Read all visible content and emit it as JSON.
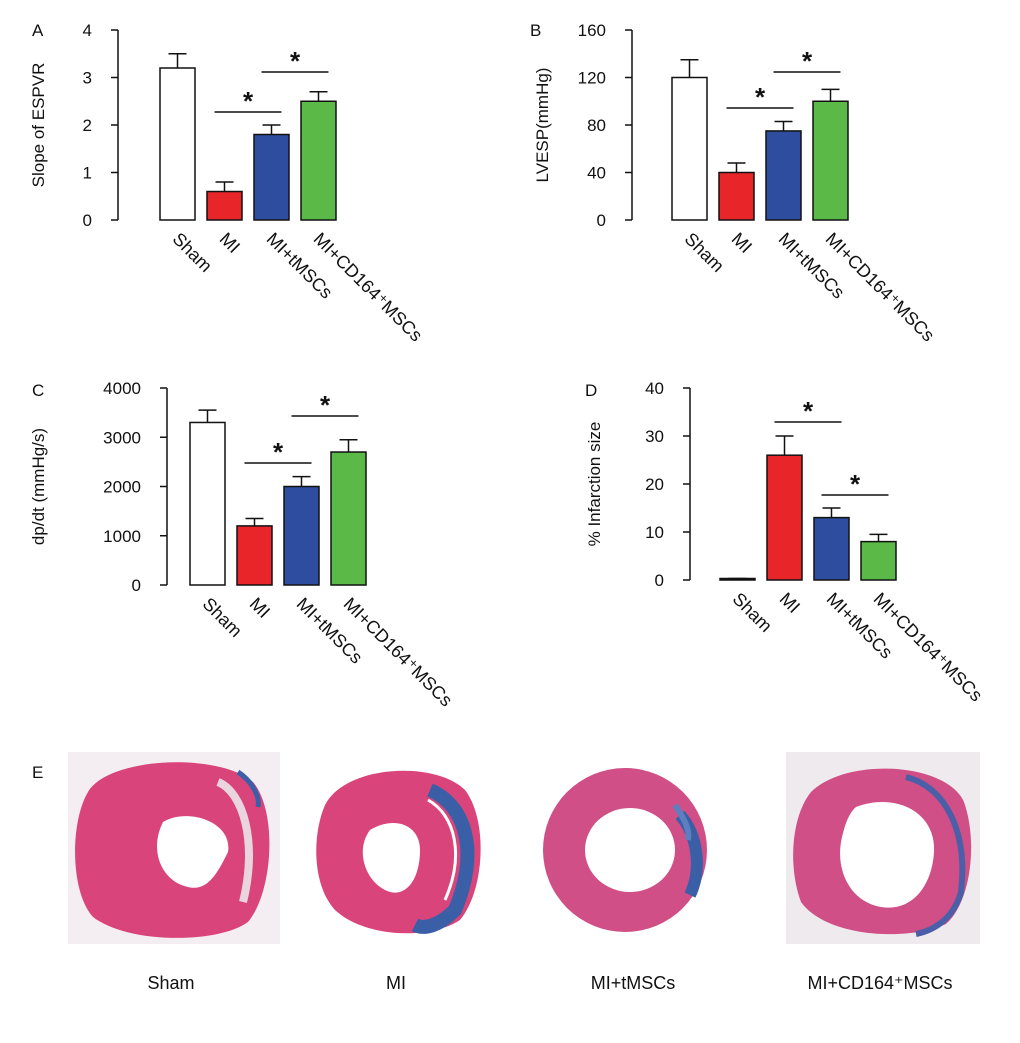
{
  "figure": {
    "panel_e_letter": "E",
    "histology_captions": [
      "Sham",
      "MI",
      "MI+tMSCs",
      "MI+CD164⁺MSCs"
    ]
  },
  "colors": {
    "sham": "#ffffff",
    "mi": "#e8262a",
    "tmscs": "#2e4d9e",
    "cd164": "#5bb947",
    "tissue_pink": "#d9457a",
    "tissue_blue": "#3a5fa6"
  },
  "chart_data": [
    {
      "panel": "A",
      "type": "bar",
      "categories": [
        "Sham",
        "MI",
        "MI+tMSCs",
        "MI+CD164⁺MSCs"
      ],
      "values": [
        3.2,
        0.6,
        1.8,
        2.5
      ],
      "errors": [
        0.3,
        0.2,
        0.2,
        0.2
      ],
      "ylabel": "Slope of ESPVR",
      "ylim": [
        0,
        4
      ],
      "yticks": [
        0,
        1,
        2,
        3,
        4
      ],
      "ytick_labels": [
        "0",
        "1",
        "2",
        "3",
        "4"
      ],
      "significance": [
        {
          "from": 1,
          "to": 2,
          "label": "*"
        },
        {
          "from": 2,
          "to": 3,
          "label": "*"
        }
      ]
    },
    {
      "panel": "B",
      "type": "bar",
      "categories": [
        "Sham",
        "MI",
        "MI+tMSCs",
        "MI+CD164⁺MSCs"
      ],
      "values": [
        120,
        40,
        75,
        100
      ],
      "errors": [
        15,
        8,
        8,
        10
      ],
      "ylabel": "LVESP(mmHg)",
      "ylim": [
        0,
        160
      ],
      "yticks": [
        0,
        40,
        80,
        120,
        160
      ],
      "ytick_labels": [
        "0",
        "40",
        "80",
        "120",
        "160"
      ],
      "significance": [
        {
          "from": 1,
          "to": 2,
          "label": "*"
        },
        {
          "from": 2,
          "to": 3,
          "label": "*"
        }
      ]
    },
    {
      "panel": "C",
      "type": "bar",
      "categories": [
        "Sham",
        "MI",
        "MI+tMSCs",
        "MI+CD164⁺MSCs"
      ],
      "values": [
        3300,
        1200,
        2000,
        2700
      ],
      "errors": [
        250,
        150,
        200,
        250
      ],
      "ylabel": "dp/dt (mmHg/s)",
      "ylim": [
        0,
        4000
      ],
      "yticks": [
        0,
        1000,
        2000,
        3000,
        4000
      ],
      "ytick_labels": [
        "0",
        "1000",
        "2000",
        "3000",
        "4000"
      ],
      "significance": [
        {
          "from": 1,
          "to": 2,
          "label": "*"
        },
        {
          "from": 2,
          "to": 3,
          "label": "*"
        }
      ]
    },
    {
      "panel": "D",
      "type": "bar",
      "categories": [
        "Sham",
        "MI",
        "MI+tMSCs",
        "MI+CD164⁺MSCs"
      ],
      "values": [
        0.2,
        26,
        13,
        8
      ],
      "errors": [
        0.1,
        4,
        2,
        1.5
      ],
      "ylabel": "% Infarction size",
      "ylim": [
        0,
        40
      ],
      "yticks": [
        0,
        10,
        20,
        30,
        40
      ],
      "ytick_labels": [
        "0",
        "10",
        "20",
        "30",
        "40"
      ],
      "significance": [
        {
          "from": 1,
          "to": 2,
          "label": "*"
        },
        {
          "from": 2,
          "to": 3,
          "label": "*"
        }
      ]
    }
  ]
}
